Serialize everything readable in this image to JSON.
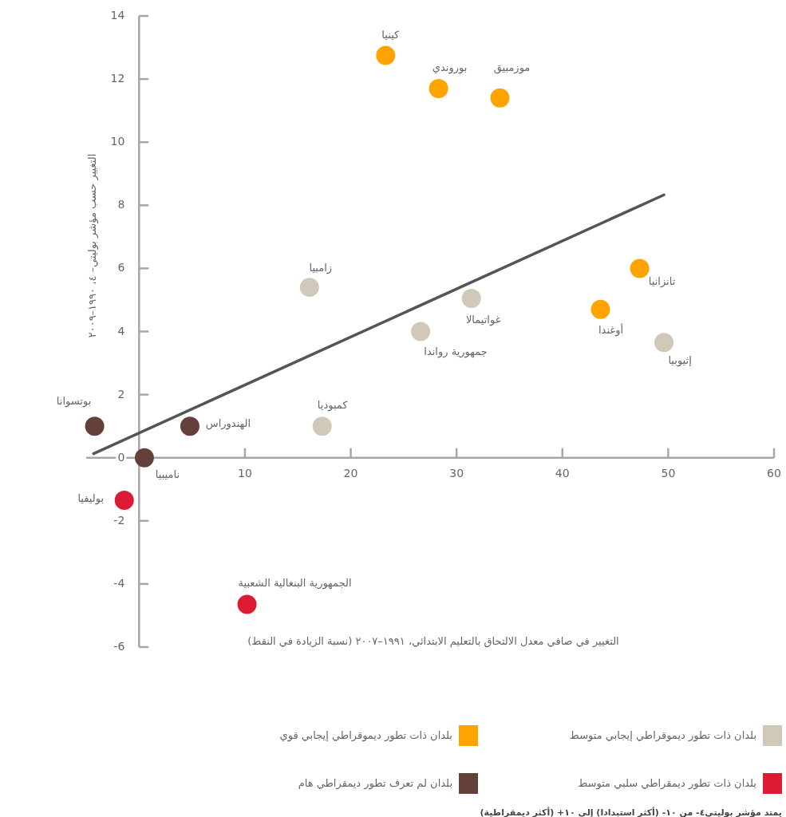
{
  "chart_data": {
    "type": "scatter",
    "xlabel": "التغيير في صافي معدل الالتحاق بالتعليم الابتدائي، ١٩٩١–٢٠٠٧ (نسبة الزيادة في النقط)",
    "ylabel": "التغيير حسب مؤشر بوليتي– ٤، ١٩٩٠–٢٠٠٩",
    "xlim": [
      -5,
      60
    ],
    "xticks": [
      10,
      20,
      30,
      40,
      50,
      60
    ],
    "ylim": [
      -6,
      14
    ],
    "yticks": [
      -6,
      -4,
      -2,
      0,
      2,
      4,
      6,
      8,
      10,
      12,
      14
    ],
    "grid": false,
    "legend": "bottom",
    "marker": "circle",
    "series": [
      {
        "name": "بلدان ذات تطور ديموقراطي إيجابي متوسط",
        "color": "#d0c9b9",
        "x": [
          16.1,
          31.4,
          26.6,
          49.6,
          17.3
        ],
        "values": [
          5.4,
          5.05,
          4.0,
          3.65,
          1.0
        ]
      },
      {
        "name": "بلدان ذات تطور ديموقراطي إيجابي قوي",
        "color": "#ffa300",
        "x": [
          23.3,
          28.3,
          34.1,
          47.3,
          43.6
        ],
        "values": [
          12.75,
          11.7,
          11.4,
          6.0,
          4.7
        ]
      },
      {
        "name": "بلدان ذات تطور ديمقراطي سلبي متوسط",
        "color": "#dc1c32",
        "x": [
          -1.4,
          10.2
        ],
        "values": [
          -1.35,
          -4.65
        ]
      },
      {
        "name": "بلدان لم تعرف تطور ديمقراطي هام",
        "color": "#65403a",
        "x": [
          -4.2,
          4.8,
          0.5
        ],
        "values": [
          1.0,
          1.0,
          0.0
        ]
      },
      {
        "type": "line",
        "color": "#555555",
        "line_style": "solid",
        "marker": "none",
        "x": [
          -4.3,
          49.6
        ],
        "values": [
          0.13,
          8.33
        ]
      }
    ],
    "annotations": [
      {
        "text": "كينيا",
        "x": 23.3,
        "y": 12.75
      },
      {
        "text": "بوروندي",
        "x": 28.3,
        "y": 11.7
      },
      {
        "text": "موزمبيق",
        "x": 34.1,
        "y": 11.4
      },
      {
        "text": "تانزانيا",
        "x": 47.3,
        "y": 6.0
      },
      {
        "text": "أوغندا",
        "x": 43.6,
        "y": 4.7
      },
      {
        "text": "إثيوبيا",
        "x": 49.6,
        "y": 3.65
      },
      {
        "text": "زامبيا",
        "x": 16.1,
        "y": 5.4
      },
      {
        "text": "غواتيمالا",
        "x": 31.4,
        "y": 5.05
      },
      {
        "text": "جمهورية رواندا",
        "x": 26.6,
        "y": 4.0
      },
      {
        "text": "كمبوديا",
        "x": 17.3,
        "y": 1.0
      },
      {
        "text": "بوتسوانا",
        "x": -4.2,
        "y": 1.0
      },
      {
        "text": "الهندوراس",
        "x": 4.8,
        "y": 1.0
      },
      {
        "text": "ناميبيا",
        "x": 0.5,
        "y": 0.0
      },
      {
        "text": "بوليفيا",
        "x": -1.4,
        "y": -1.35
      },
      {
        "text": "الجمهورية البنغالية الشعبية",
        "x": 10.2,
        "y": -4.65
      },
      "يمتد مؤشر بوليتي٤- من ١٠- (أكثر استبدادا) إلى ١٠+ (أكثر ديمقراطية)"
    ]
  }
}
